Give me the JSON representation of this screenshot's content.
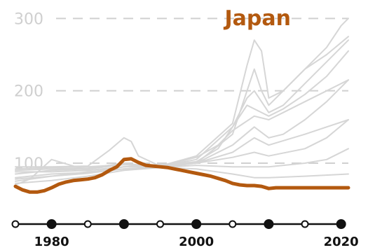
{
  "colors": {
    "highlight": "#b3590f",
    "background_series": "#d6d6d6",
    "gridline": "#d0d0d0",
    "tick_label": "#cfcfcf",
    "axis": "#111111"
  },
  "chart_data": {
    "type": "line",
    "title": "",
    "xlabel": "",
    "ylabel": "",
    "xlim": [
      1975,
      2021
    ],
    "ylim": [
      40,
      310
    ],
    "yticks": [
      100,
      200,
      300
    ],
    "ytick_labels": [
      "100",
      "200",
      "300"
    ],
    "xticks": [
      1980,
      2000,
      2020
    ],
    "xtick_labels": [
      "1980",
      "2000",
      "2020"
    ],
    "timeline_markers": [
      {
        "x": 1975,
        "filled": false
      },
      {
        "x": 1980,
        "filled": true
      },
      {
        "x": 1985,
        "filled": false
      },
      {
        "x": 1990,
        "filled": true
      },
      {
        "x": 1995,
        "filled": false
      },
      {
        "x": 2000,
        "filled": true
      },
      {
        "x": 2005,
        "filled": false
      },
      {
        "x": 2010,
        "filled": true
      },
      {
        "x": 2015,
        "filled": false
      },
      {
        "x": 2020,
        "filled": true
      }
    ],
    "grid": {
      "horizontal_dashed": true
    },
    "highlight_series": {
      "name": "Japan",
      "x": [
        1975,
        1976,
        1977,
        1978,
        1979,
        1980,
        1981,
        1982,
        1983,
        1984,
        1985,
        1986,
        1987,
        1988,
        1989,
        1990,
        1991,
        1992,
        1993,
        1994,
        1995,
        1996,
        1997,
        1998,
        1999,
        2000,
        2001,
        2002,
        2003,
        2004,
        2005,
        2006,
        2007,
        2008,
        2009,
        2010,
        2011,
        2012,
        2013,
        2014,
        2015,
        2016,
        2017,
        2018,
        2019,
        2020,
        2021
      ],
      "values": [
        68,
        63,
        60,
        60,
        62,
        66,
        71,
        74,
        76,
        77,
        78,
        80,
        84,
        90,
        95,
        105,
        106,
        101,
        97,
        96,
        95,
        94,
        92,
        90,
        88,
        86,
        84,
        82,
        79,
        76,
        72,
        70,
        69,
        69,
        68,
        65,
        66,
        66,
        66,
        66,
        66,
        66,
        66,
        66,
        66,
        66,
        66
      ]
    },
    "background_series": [
      {
        "x": [
          1975,
          1980,
          1985,
          1988,
          1990,
          1991,
          1992,
          1995,
          2000,
          2005,
          2007,
          2008,
          2009,
          2010,
          2012,
          2015,
          2018,
          2020,
          2021
        ],
        "values": [
          95,
          95,
          96,
          118,
          135,
          130,
          110,
          96,
          110,
          155,
          235,
          270,
          255,
          190,
          200,
          230,
          260,
          290,
          300
        ]
      },
      {
        "x": [
          1975,
          1980,
          1985,
          1990,
          1995,
          2000,
          2005,
          2006,
          2007,
          2008,
          2009,
          2010,
          2012,
          2015,
          2018,
          2021
        ],
        "values": [
          90,
          92,
          93,
          100,
          94,
          100,
          140,
          170,
          200,
          230,
          200,
          180,
          200,
          230,
          250,
          275
        ]
      },
      {
        "x": [
          1975,
          1980,
          1985,
          1990,
          1995,
          2000,
          2005,
          2007,
          2008,
          2010,
          2012,
          2015,
          2018,
          2021
        ],
        "values": [
          85,
          90,
          92,
          98,
          96,
          105,
          150,
          190,
          200,
          170,
          180,
          210,
          240,
          270
        ]
      },
      {
        "x": [
          1975,
          1980,
          1985,
          1990,
          1995,
          2000,
          2003,
          2005,
          2007,
          2008,
          2010,
          2012,
          2015,
          2018,
          2021
        ],
        "values": [
          80,
          85,
          87,
          95,
          97,
          102,
          120,
          150,
          180,
          175,
          165,
          175,
          195,
          220,
          255
        ]
      },
      {
        "x": [
          1975,
          1980,
          1985,
          1990,
          1995,
          2000,
          2005,
          2008,
          2010,
          2012,
          2015,
          2018,
          2021
        ],
        "values": [
          88,
          88,
          90,
          95,
          95,
          100,
          125,
          150,
          135,
          140,
          160,
          185,
          215
        ]
      },
      {
        "x": [
          1975,
          1980,
          1985,
          1990,
          1995,
          2000,
          2005,
          2008,
          2010,
          2015,
          2018,
          2021
        ],
        "values": [
          75,
          82,
          88,
          92,
          95,
          100,
          115,
          135,
          125,
          140,
          150,
          160
        ]
      },
      {
        "x": [
          1975,
          1977,
          1980,
          1985,
          1990,
          1995,
          2000,
          2005,
          2008,
          2010,
          2015,
          2018,
          2021
        ],
        "values": [
          70,
          78,
          105,
          90,
          95,
          98,
          100,
          108,
          115,
          110,
          120,
          135,
          160
        ]
      },
      {
        "x": [
          1975,
          1980,
          1985,
          1990,
          1995,
          2000,
          2005,
          2010,
          2015,
          2018,
          2021
        ],
        "values": [
          78,
          82,
          86,
          92,
          94,
          97,
          95,
          95,
          100,
          105,
          120
        ]
      },
      {
        "x": [
          1975,
          1980,
          1985,
          1990,
          1995,
          2000,
          2005,
          2008,
          2010,
          2015,
          2021
        ],
        "values": [
          72,
          76,
          82,
          90,
          94,
          92,
          85,
          80,
          80,
          82,
          85
        ]
      },
      {
        "x": [
          1975,
          1980,
          1985,
          1990,
          1995,
          2000,
          2003,
          2005,
          2008,
          2010,
          2012,
          2015,
          2018,
          2021
        ],
        "values": [
          92,
          94,
          95,
          98,
          96,
          108,
          125,
          145,
          165,
          160,
          170,
          185,
          200,
          215
        ]
      }
    ]
  }
}
